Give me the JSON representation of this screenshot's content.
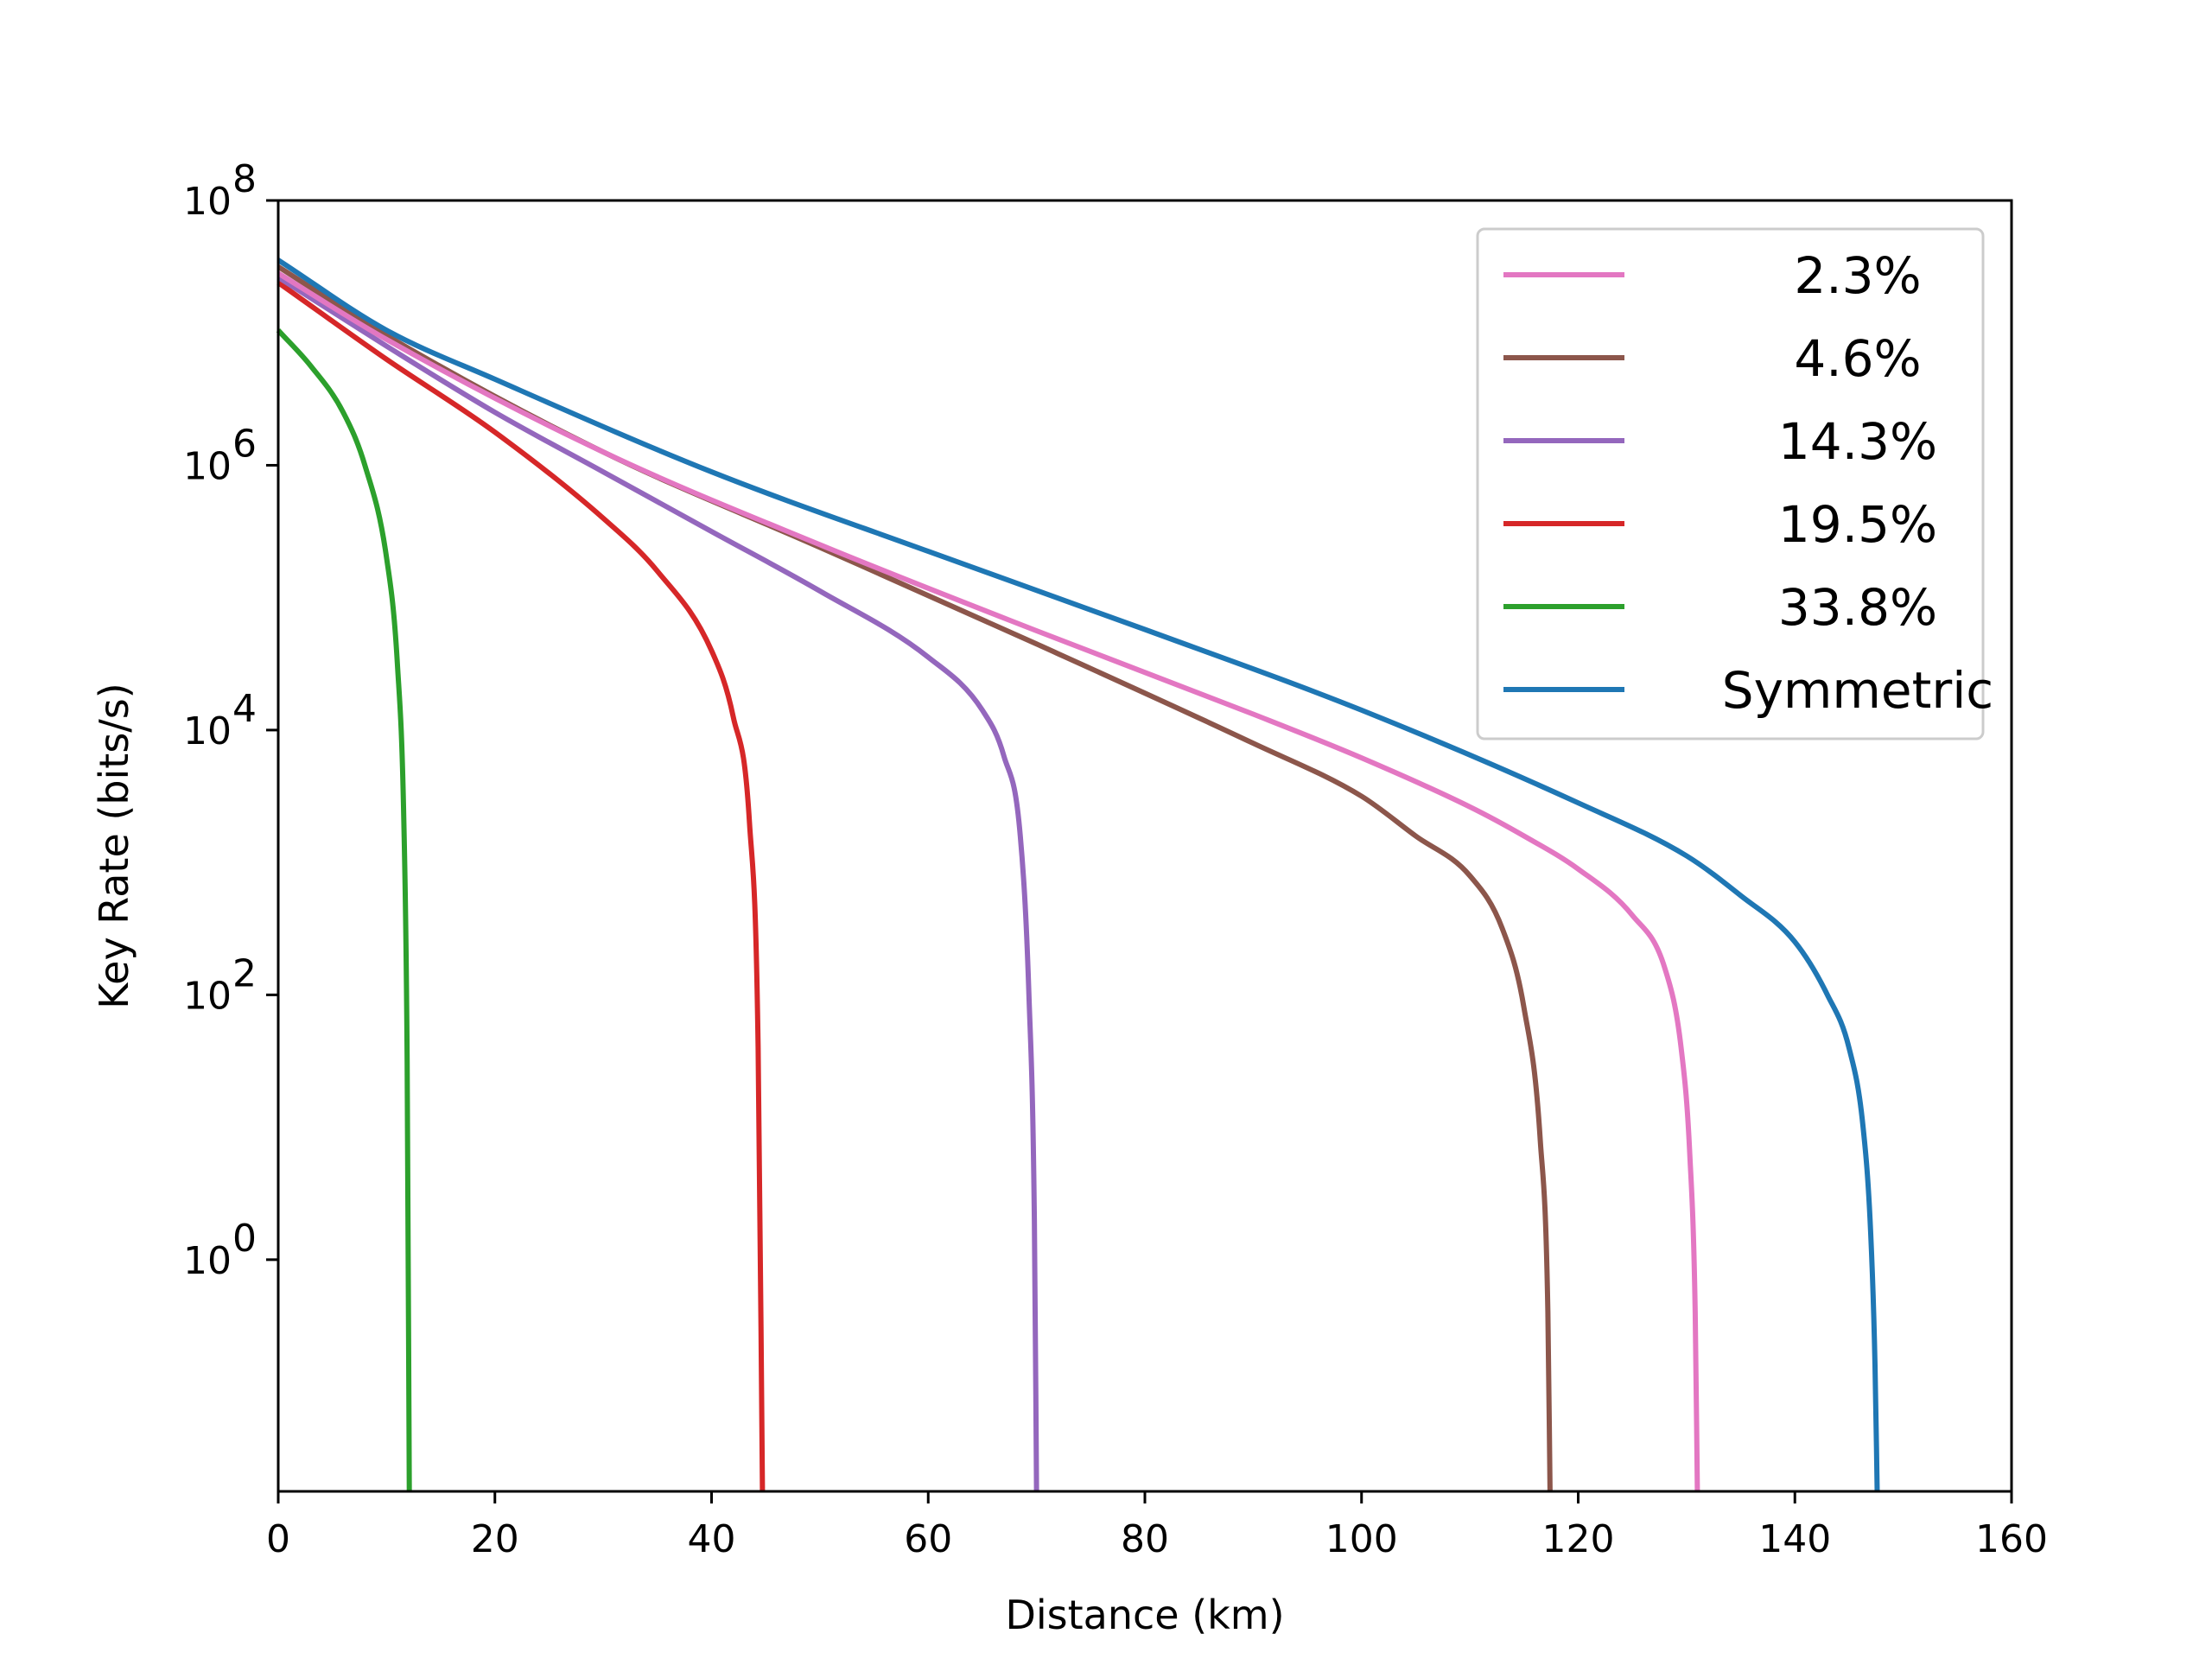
{
  "chart_data": {
    "type": "line",
    "title": "",
    "xlabel": "Distance (km)",
    "ylabel": "Key Rate (bits/s)",
    "xlim": [
      0,
      160
    ],
    "ylim_log10": [
      -1.75,
      8
    ],
    "y_scale": "log",
    "grid": false,
    "legend_placement": "top-right",
    "x_ticks": [
      {
        "value": 0,
        "label": "0"
      },
      {
        "value": 20,
        "label": "20"
      },
      {
        "value": 40,
        "label": "40"
      },
      {
        "value": 60,
        "label": "60"
      },
      {
        "value": 80,
        "label": "80"
      },
      {
        "value": 100,
        "label": "100"
      },
      {
        "value": 120,
        "label": "120"
      },
      {
        "value": 140,
        "label": "140"
      },
      {
        "value": 160,
        "label": "160"
      }
    ],
    "y_ticks": [
      {
        "exp": 8,
        "base": "10",
        "sup": "8"
      },
      {
        "exp": 6,
        "base": "10",
        "sup": "6"
      },
      {
        "exp": 4,
        "base": "10",
        "sup": "4"
      },
      {
        "exp": 2,
        "base": "10",
        "sup": "2"
      },
      {
        "exp": 0,
        "base": "10",
        "sup": "0"
      }
    ],
    "series": [
      {
        "name": "2.3%",
        "color": "#e377c2",
        "x": [
          0,
          10,
          30,
          50,
          70,
          90,
          100,
          110,
          115,
          120,
          125,
          128,
          129.5,
          130.3,
          130.8,
          131
        ],
        "log10_y": [
          7.45,
          6.95,
          6.1,
          5.4,
          4.75,
          4.12,
          3.79,
          3.42,
          3.2,
          2.95,
          2.6,
          2.2,
          1.6,
          0.8,
          -0.4,
          -1.75
        ]
      },
      {
        "name": "4.6%",
        "color": "#8c564b",
        "x": [
          0,
          10,
          30,
          50,
          70,
          90,
          100,
          105,
          110,
          113,
          115,
          116.5,
          117.2,
          117.4
        ],
        "log10_y": [
          7.5,
          6.98,
          6.1,
          5.38,
          4.65,
          3.9,
          3.5,
          3.2,
          2.9,
          2.5,
          1.9,
          0.9,
          -0.4,
          -1.75
        ]
      },
      {
        "name": "14.3%",
        "color": "#9467bd",
        "x": [
          0,
          10,
          20,
          30,
          40,
          50,
          60,
          65,
          67,
          68.5,
          69.3,
          69.8,
          70
        ],
        "log10_y": [
          7.42,
          6.9,
          6.4,
          5.95,
          5.5,
          5.05,
          4.55,
          4.15,
          3.8,
          3.2,
          2.0,
          0.3,
          -1.75
        ]
      },
      {
        "name": "19.5%",
        "color": "#d62728",
        "x": [
          0,
          10,
          20,
          30,
          35,
          40,
          42,
          43.5,
          44.3,
          44.7
        ],
        "log10_y": [
          7.38,
          6.8,
          6.25,
          5.6,
          5.2,
          4.6,
          4.1,
          3.3,
          1.6,
          -1.75
        ]
      },
      {
        "name": "33.8%",
        "color": "#2ca02c",
        "x": [
          0,
          3,
          6,
          8,
          10,
          11,
          11.6,
          11.9,
          12.1
        ],
        "log10_y": [
          7.02,
          6.75,
          6.4,
          6.0,
          5.3,
          4.5,
          3.3,
          1.5,
          -1.75
        ]
      },
      {
        "name": "Symmetric",
        "color": "#1f77b4",
        "x": [
          0,
          10,
          20,
          40,
          60,
          80,
          100,
          120,
          130,
          135,
          140,
          143,
          145,
          146.3,
          147,
          147.4,
          147.6
        ],
        "log10_y": [
          7.55,
          7.02,
          6.65,
          5.95,
          5.35,
          4.76,
          4.15,
          3.45,
          3.05,
          2.75,
          2.4,
          2.0,
          1.6,
          1.0,
          0.2,
          -0.8,
          -1.75
        ]
      }
    ]
  }
}
